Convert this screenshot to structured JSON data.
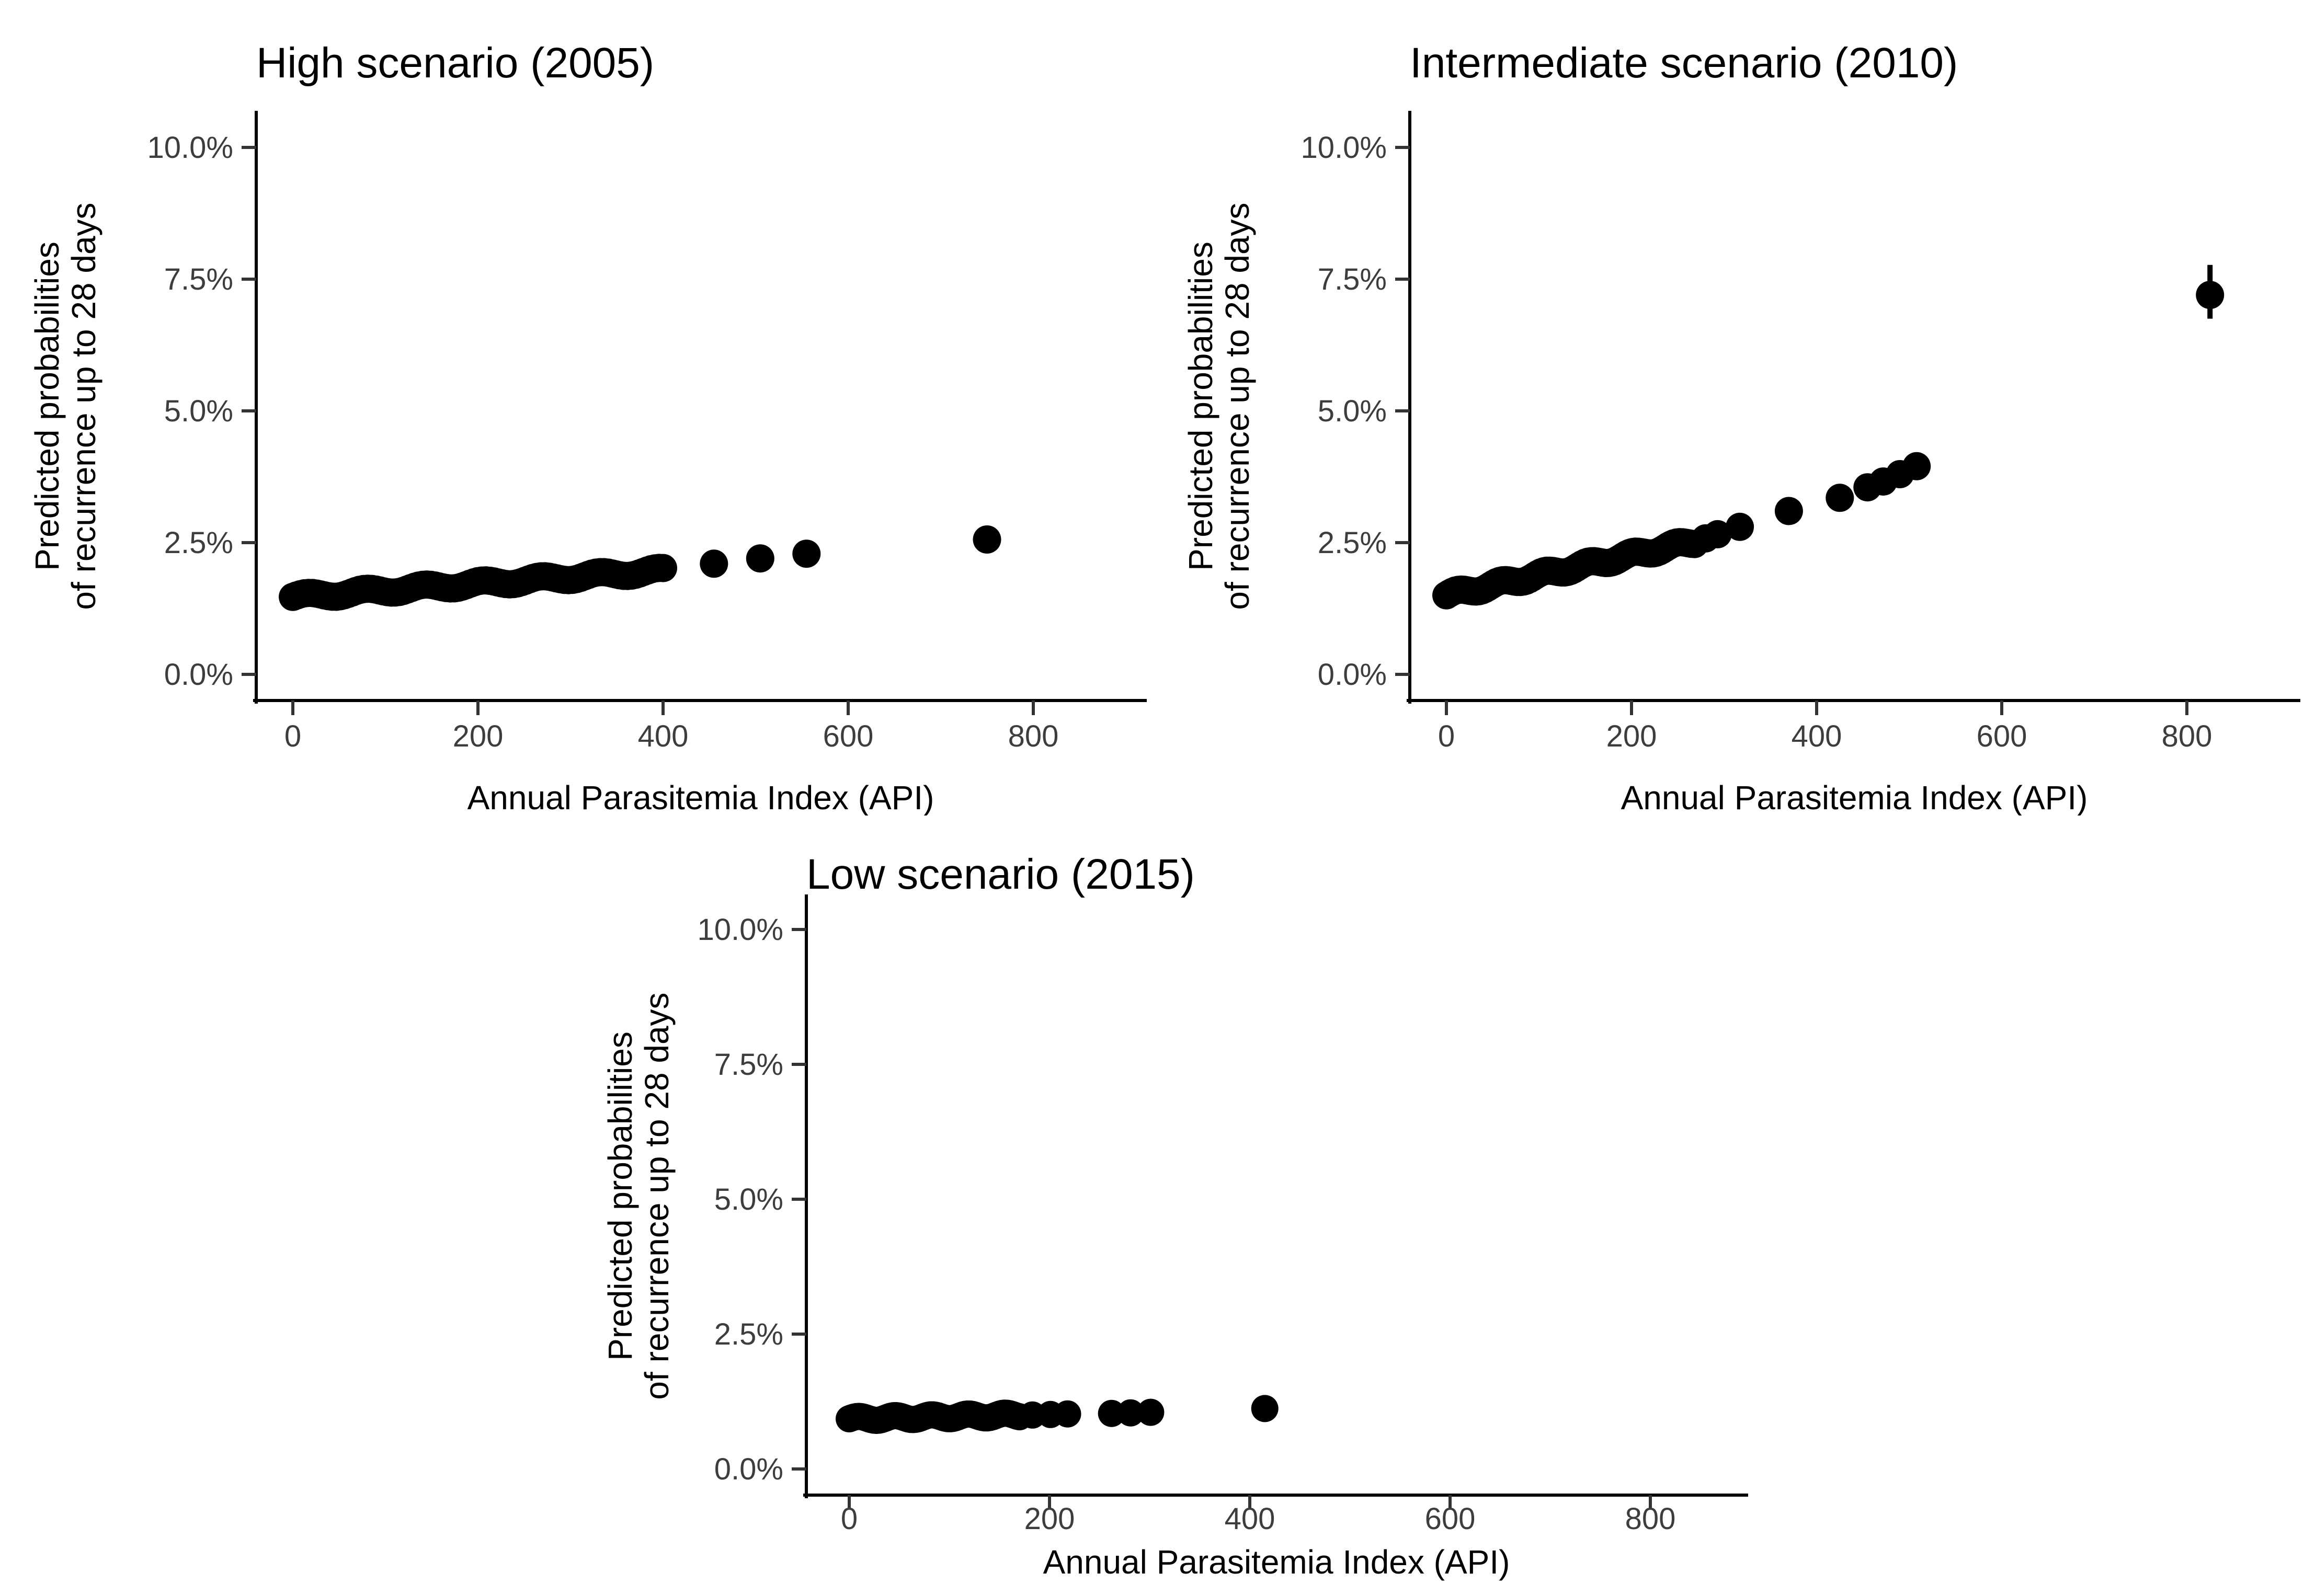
{
  "figure": {
    "background_color": "#ffffff",
    "point_color": "#000000",
    "axis_color": "#000000",
    "tick_label_color": "#3d3d3d",
    "title_color": "#000000"
  },
  "chart_data": [
    {
      "type": "scatter",
      "panel": "top-left",
      "title": "High scenario (2005)",
      "xlabel": "Annual Parasitemia Index (API)",
      "ylabel_line1": "Predicted probabilities",
      "ylabel_line2": "of recurrence up to 28 days",
      "x_tick_values": [
        0,
        200,
        400,
        600,
        800
      ],
      "x_tick_labels": [
        "0",
        "200",
        "400",
        "600",
        "800"
      ],
      "y_tick_values": [
        0,
        2.5,
        5,
        7.5,
        10
      ],
      "y_tick_labels": [
        "0.0%",
        "2.5%",
        "5.0%",
        "7.5%",
        "10.0%"
      ],
      "x_range": [
        -50,
        920
      ],
      "y_range_pct": [
        -0.5,
        10.9
      ],
      "grid": "off",
      "legend": "none",
      "dense_band": {
        "x_from": 0,
        "x_to": 400,
        "y_from_pct": 1.47,
        "y_to_pct": 1.97,
        "n_points": 95,
        "jitter_pct": 0.055
      },
      "isolated_points": [
        [
          455,
          2.1
        ],
        [
          505,
          2.2
        ],
        [
          555,
          2.29
        ],
        [
          750,
          2.56
        ]
      ],
      "outlier_with_ci": null
    },
    {
      "type": "scatter",
      "panel": "top-right",
      "title": "Intermediate scenario (2010)",
      "xlabel": "Annual Parasitemia Index (API)",
      "ylabel_line1": "Predicted probabilities",
      "ylabel_line2": "of recurrence up to 28 days",
      "x_tick_values": [
        0,
        200,
        400,
        600,
        800
      ],
      "x_tick_labels": [
        "0",
        "200",
        "400",
        "600",
        "800"
      ],
      "y_tick_values": [
        0,
        2.5,
        5,
        7.5,
        10
      ],
      "y_tick_labels": [
        "0.0%",
        "2.5%",
        "5.0%",
        "7.5%",
        "10.0%"
      ],
      "x_range": [
        -50,
        920
      ],
      "y_range_pct": [
        -0.5,
        10.9
      ],
      "grid": "off",
      "legend": "none",
      "dense_band": {
        "x_from": 0,
        "x_to": 268,
        "y_from_pct": 1.5,
        "y_to_pct": 2.52,
        "n_points": 85,
        "jitter_pct": 0.055
      },
      "isolated_points": [
        [
          280,
          2.58
        ],
        [
          293,
          2.66
        ],
        [
          317,
          2.8
        ],
        [
          370,
          3.1
        ],
        [
          425,
          3.35
        ],
        [
          455,
          3.55
        ],
        [
          472,
          3.66
        ],
        [
          490,
          3.8
        ],
        [
          508,
          3.95
        ]
      ],
      "outlier_with_ci": {
        "x": 825,
        "y_pct": 7.2,
        "ci_low_pct": 6.75,
        "ci_high_pct": 7.77
      }
    },
    {
      "type": "scatter",
      "panel": "bottom-center",
      "title": "Low scenario (2015)",
      "xlabel": "Annual Parasitemia Index (API)",
      "ylabel_line1": "Predicted probabilities",
      "ylabel_line2": "of recurrence up to 28 days",
      "x_tick_values": [
        0,
        200,
        400,
        600,
        800
      ],
      "x_tick_labels": [
        "0",
        "200",
        "400",
        "600",
        "800"
      ],
      "y_tick_values": [
        0,
        2.5,
        5,
        7.5,
        10
      ],
      "y_tick_labels": [
        "0.0%",
        "2.5%",
        "5.0%",
        "7.5%",
        "10.0%"
      ],
      "x_range": [
        -50,
        920
      ],
      "y_range_pct": [
        -0.5,
        10.9
      ],
      "grid": "off",
      "legend": "none",
      "dense_band": {
        "x_from": 0,
        "x_to": 170,
        "y_from_pct": 0.93,
        "y_to_pct": 1.0,
        "n_points": 70,
        "jitter_pct": 0.04
      },
      "isolated_points": [
        [
          183,
          1.0
        ],
        [
          201,
          1.01
        ],
        [
          218,
          1.02
        ],
        [
          262,
          1.03
        ],
        [
          281,
          1.04
        ],
        [
          301,
          1.05
        ],
        [
          415,
          1.12
        ]
      ],
      "outlier_with_ci": null
    }
  ]
}
